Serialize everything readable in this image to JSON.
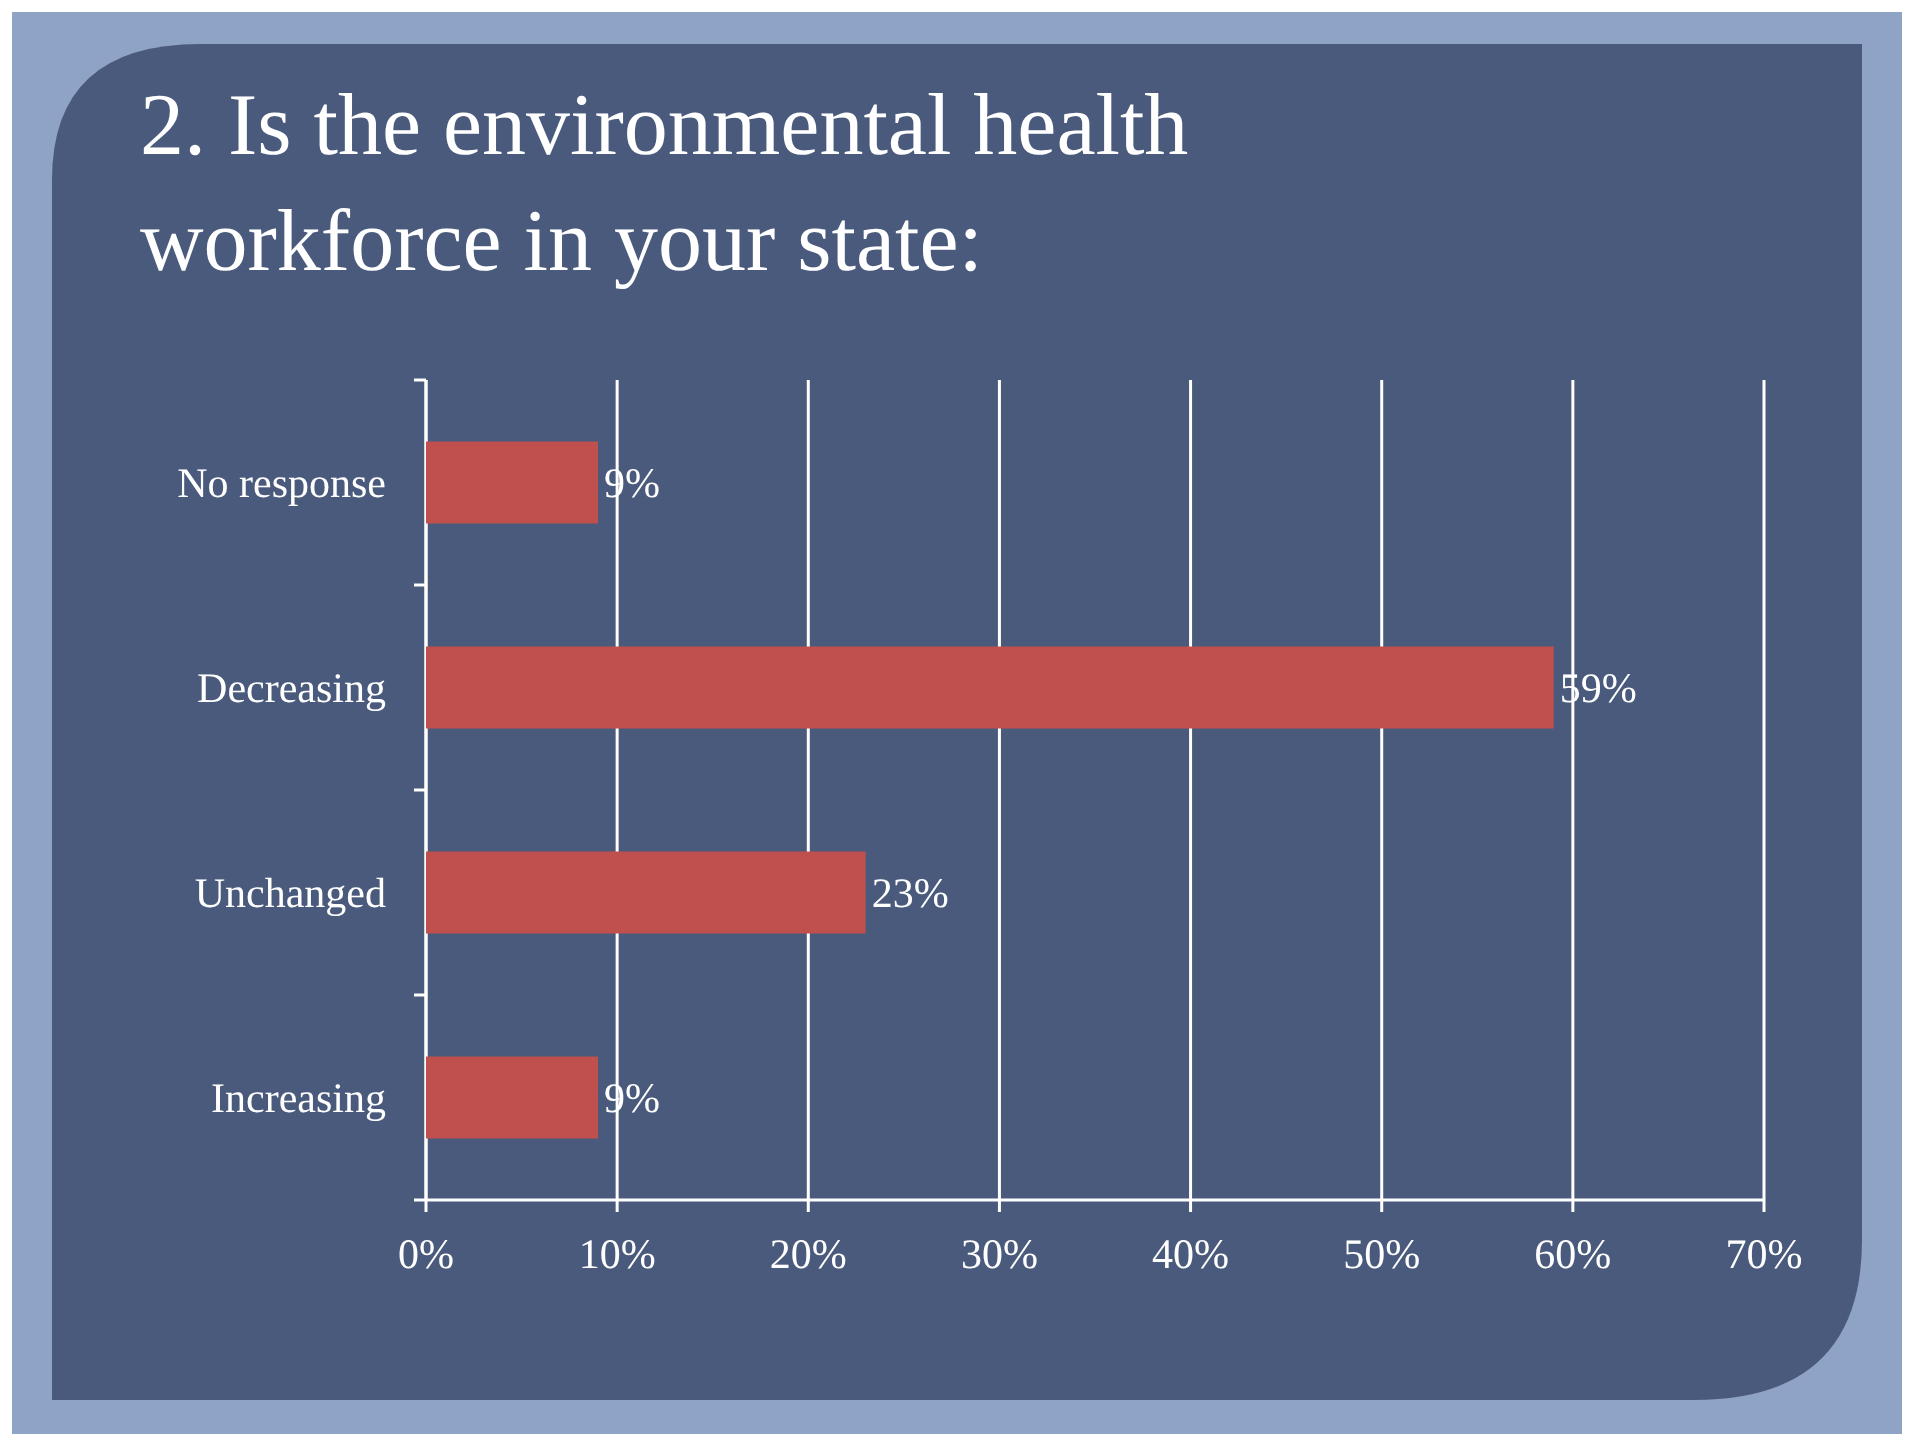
{
  "chart_data": {
    "type": "bar",
    "orientation": "horizontal",
    "title": "2. Is the environmental health workforce in your state:",
    "categories": [
      "No response",
      "Decreasing",
      "Unchanged",
      "Increasing"
    ],
    "values": [
      9,
      59,
      23,
      9
    ],
    "color": "#c0504d",
    "value_labels": [
      "9%",
      "59%",
      "23%",
      "9%"
    ],
    "xlim": [
      0,
      70
    ],
    "xticks": [
      {
        "value": 0,
        "label": "0%"
      },
      {
        "value": 10,
        "label": "10%"
      },
      {
        "value": 20,
        "label": "20%"
      },
      {
        "value": 30,
        "label": "30%"
      },
      {
        "value": 40,
        "label": "40%"
      },
      {
        "value": 50,
        "label": "50%"
      },
      {
        "value": 60,
        "label": "60%"
      },
      {
        "value": 70,
        "label": "70%"
      }
    ],
    "grid": "x"
  }
}
